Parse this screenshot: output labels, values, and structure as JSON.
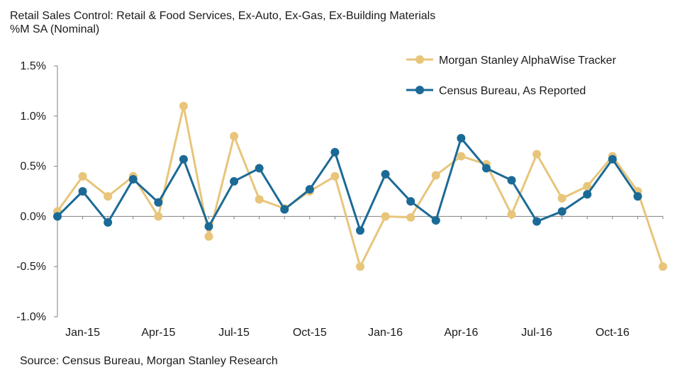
{
  "chart_data": {
    "type": "line",
    "title": "Retail Sales Control: Retail & Food Services, Ex-Auto, Ex-Gas, Ex-Building Materials",
    "subtitle": "%M SA (Nominal)",
    "source": "Source: Census Bureau, Morgan Stanley Research",
    "xlabel": "",
    "ylabel": "",
    "ylim": [
      -1.0,
      1.5
    ],
    "y_ticks": [
      1.5,
      1.0,
      0.5,
      0.0,
      -0.5,
      -1.0
    ],
    "y_tick_labels": [
      "1.5%",
      "1.0%",
      "0.5%",
      "0.0%",
      "-0.5%",
      "-1.0%"
    ],
    "x_categories": [
      "Dec-14",
      "Jan-15",
      "Feb-15",
      "Mar-15",
      "Apr-15",
      "May-15",
      "Jun-15",
      "Jul-15",
      "Aug-15",
      "Sep-15",
      "Oct-15",
      "Nov-15",
      "Dec-15",
      "Jan-16",
      "Feb-16",
      "Mar-16",
      "Apr-16",
      "May-16",
      "Jun-16",
      "Jul-16",
      "Aug-16",
      "Sep-16",
      "Oct-16",
      "Nov-16",
      "Dec-16"
    ],
    "x_tick_labels": [
      "Jan-15",
      "Apr-15",
      "Jul-15",
      "Oct-15",
      "Jan-16",
      "Apr-16",
      "Jul-16",
      "Oct-16"
    ],
    "x_tick_index": [
      1,
      4,
      7,
      10,
      13,
      16,
      19,
      22
    ],
    "legend_position": "top-right",
    "grid": false,
    "series": [
      {
        "name": "Morgan Stanley AlphaWise Tracker",
        "color": "#E8C57A",
        "values": [
          0.05,
          0.4,
          0.2,
          0.4,
          0.0,
          1.1,
          -0.2,
          0.8,
          0.17,
          0.08,
          0.25,
          0.4,
          -0.5,
          0.0,
          -0.01,
          0.41,
          0.6,
          0.52,
          0.02,
          0.62,
          0.18,
          0.3,
          0.6,
          0.25,
          -0.5
        ]
      },
      {
        "name": "Census Bureau, As Reported",
        "color": "#1B6A96",
        "values": [
          0.0,
          0.25,
          -0.06,
          0.37,
          0.14,
          0.57,
          -0.1,
          0.35,
          0.48,
          0.07,
          0.27,
          0.64,
          -0.14,
          0.42,
          0.15,
          -0.04,
          0.78,
          0.48,
          0.36,
          -0.05,
          0.05,
          0.22,
          0.57,
          0.2,
          null
        ]
      }
    ]
  }
}
